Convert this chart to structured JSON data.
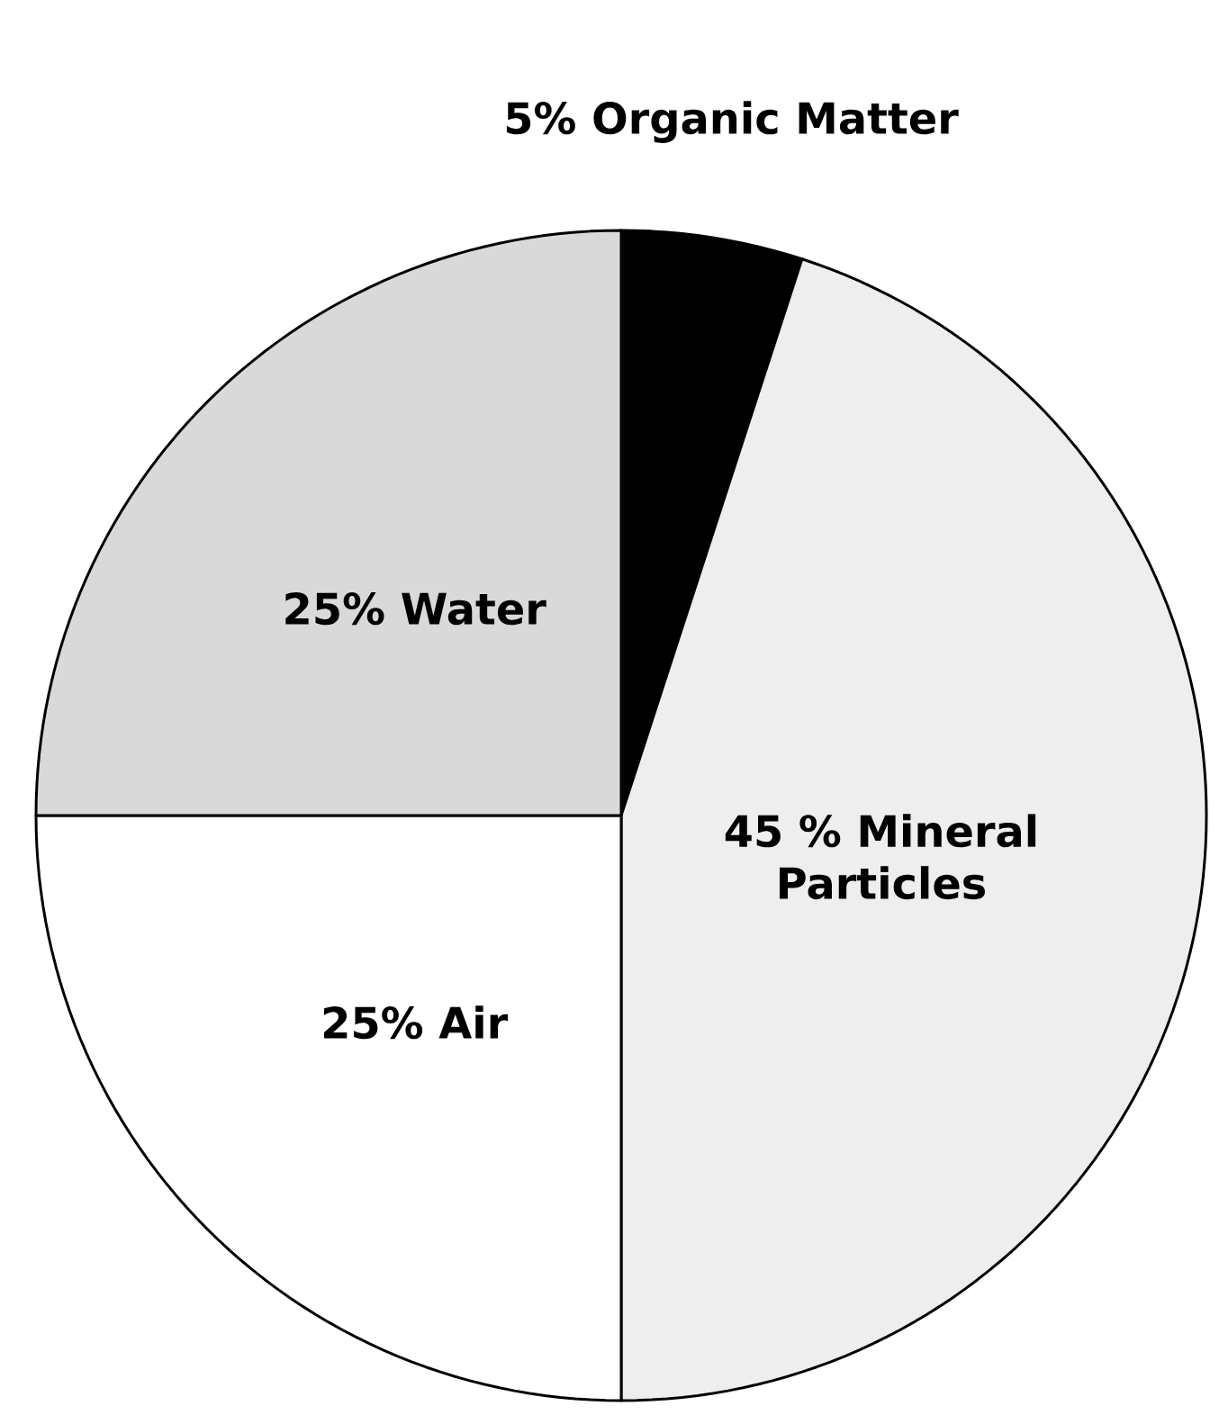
{
  "chart_data": {
    "type": "pie",
    "categories": [
      "Organic Matter",
      "Mineral Particles",
      "Air",
      "Water"
    ],
    "values": [
      5,
      45,
      25,
      25
    ],
    "value_labels": [
      "5%",
      "45 %",
      "25%",
      "25%"
    ],
    "colors": [
      "#000000",
      "#eeeeee",
      "#ffffff",
      "#d9d9d9"
    ]
  }
}
